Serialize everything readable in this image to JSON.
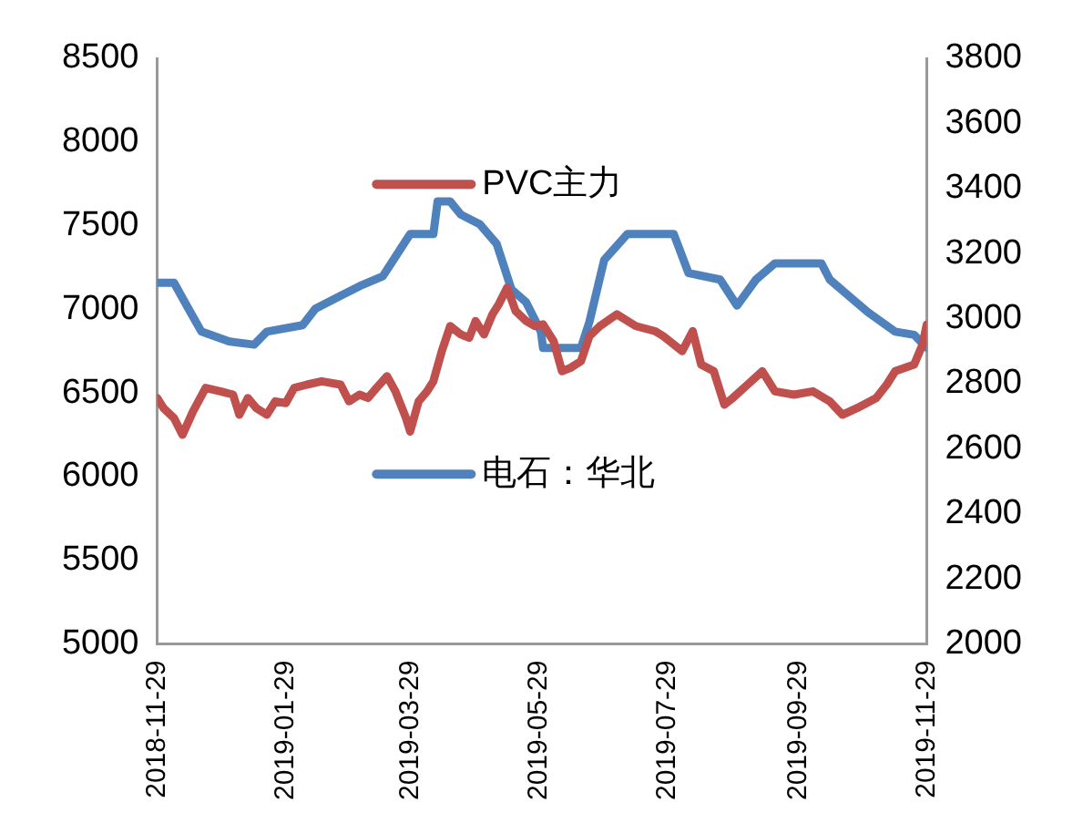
{
  "chart_data": {
    "type": "line",
    "xlim": [
      "2018-11-29",
      "2019-11-29"
    ],
    "xticks": [
      "2018-11-29",
      "2019-01-29",
      "2019-03-29",
      "2019-05-29",
      "2019-07-29",
      "2019-09-29",
      "2019-11-29"
    ],
    "ylim": [
      5000,
      8500
    ],
    "yticks": [
      5000,
      5500,
      6000,
      6500,
      7000,
      7500,
      8000,
      8500
    ],
    "y2lim": [
      2000,
      3800
    ],
    "y2ticks": [
      2000,
      2200,
      2400,
      2600,
      2800,
      3000,
      3200,
      3400,
      3600,
      3800
    ],
    "grid": false,
    "legend": "center",
    "marker": "none",
    "line_style": "solid",
    "series": [
      {
        "name": "PVC主力",
        "color": "#c0504d",
        "x": [
          "2018-11-29",
          "2018-12-02",
          "2018-12-07",
          "2018-12-11",
          "2018-12-16",
          "2018-12-22",
          "2018-12-29",
          "2019-01-04",
          "2019-01-07",
          "2019-01-11",
          "2019-01-15",
          "2019-01-20",
          "2019-01-24",
          "2019-01-29",
          "2019-02-02",
          "2019-02-08",
          "2019-02-15",
          "2019-02-24",
          "2019-02-28",
          "2019-03-05",
          "2019-03-09",
          "2019-03-13",
          "2019-03-18",
          "2019-03-22",
          "2019-03-27",
          "2019-03-29",
          "2019-04-02",
          "2019-04-06",
          "2019-04-09",
          "2019-04-13",
          "2019-04-17",
          "2019-04-22",
          "2019-04-26",
          "2019-04-29",
          "2019-05-03",
          "2019-05-07",
          "2019-05-10",
          "2019-05-14",
          "2019-05-18",
          "2019-05-23",
          "2019-05-27",
          "2019-05-31",
          "2019-06-05",
          "2019-06-09",
          "2019-06-13",
          "2019-06-18",
          "2019-06-22",
          "2019-06-27",
          "2019-07-05",
          "2019-07-14",
          "2019-07-23",
          "2019-07-27",
          "2019-08-05",
          "2019-08-10",
          "2019-08-14",
          "2019-08-20",
          "2019-08-25",
          "2019-08-29",
          "2019-09-05",
          "2019-09-12",
          "2019-09-18",
          "2019-09-27",
          "2019-10-06",
          "2019-10-14",
          "2019-10-20",
          "2019-10-27",
          "2019-11-05",
          "2019-11-10",
          "2019-11-14",
          "2019-11-23",
          "2019-11-27",
          "2019-11-29"
        ],
        "values": [
          6470,
          6410,
          6350,
          6250,
          6390,
          6530,
          6510,
          6490,
          6370,
          6470,
          6410,
          6370,
          6450,
          6440,
          6530,
          6550,
          6570,
          6550,
          6450,
          6490,
          6470,
          6530,
          6600,
          6510,
          6350,
          6270,
          6450,
          6510,
          6570,
          6750,
          6900,
          6850,
          6830,
          6930,
          6850,
          6970,
          7030,
          7130,
          6990,
          6930,
          6900,
          6910,
          6810,
          6630,
          6650,
          6690,
          6840,
          6900,
          6970,
          6900,
          6870,
          6840,
          6750,
          6870,
          6670,
          6630,
          6430,
          6470,
          6550,
          6630,
          6510,
          6490,
          6510,
          6450,
          6370,
          6410,
          6470,
          6550,
          6630,
          6670,
          6790,
          6910
        ]
      },
      {
        "name": "电石：华北",
        "color": "#4f81bd",
        "axis": "y2",
        "x": [
          "2018-11-29",
          "2018-12-07",
          "2018-12-13",
          "2018-12-20",
          "2019-01-02",
          "2019-01-14",
          "2019-01-20",
          "2019-02-06",
          "2019-02-12",
          "2019-02-24",
          "2019-03-05",
          "2019-03-16",
          "2019-03-22",
          "2019-03-29",
          "2019-04-09",
          "2019-04-11",
          "2019-04-17",
          "2019-04-22",
          "2019-05-01",
          "2019-05-09",
          "2019-05-16",
          "2019-05-23",
          "2019-05-30",
          "2019-05-31",
          "2019-06-18",
          "2019-06-22",
          "2019-06-29",
          "2019-07-10",
          "2019-08-01",
          "2019-08-08",
          "2019-08-23",
          "2019-08-31",
          "2019-09-09",
          "2019-09-18",
          "2019-10-10",
          "2019-10-14",
          "2019-10-23",
          "2019-11-01",
          "2019-11-14",
          "2019-11-23",
          "2019-11-29"
        ],
        "values": [
          3110,
          3110,
          3040,
          2960,
          2930,
          2920,
          2960,
          2980,
          3030,
          3070,
          3100,
          3130,
          3190,
          3260,
          3260,
          3360,
          3360,
          3320,
          3290,
          3230,
          3090,
          3050,
          2960,
          2910,
          2910,
          2990,
          3180,
          3260,
          3260,
          3140,
          3120,
          3040,
          3120,
          3170,
          3170,
          3120,
          3070,
          3020,
          2960,
          2950,
          2910
        ]
      }
    ]
  }
}
